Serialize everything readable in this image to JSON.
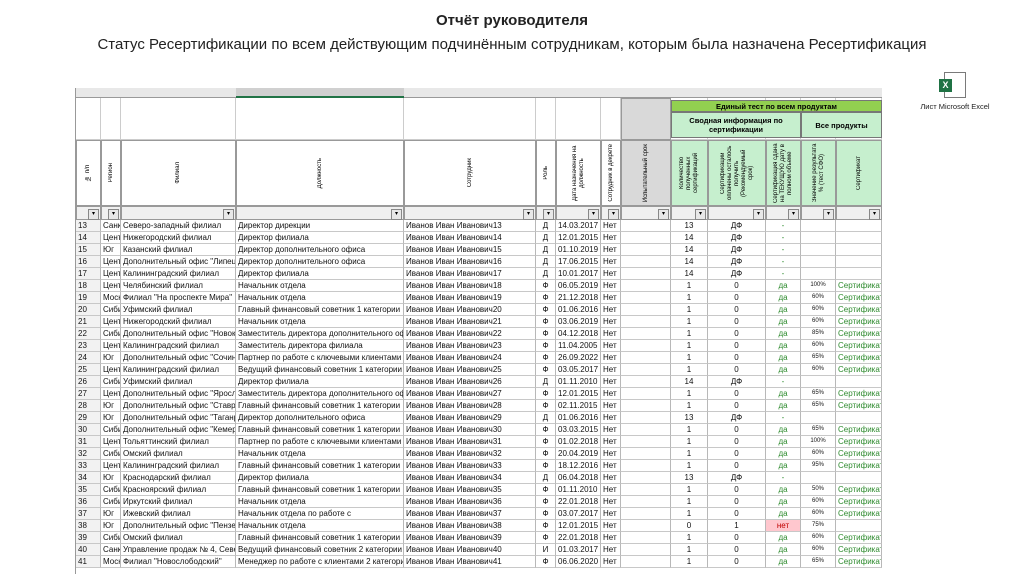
{
  "header": {
    "title": "Отчёт руководителя",
    "subtitle": "Статус Ресертификации по всем действующим подчинённым сотрудникам, которым была назначена Ресертификация"
  },
  "attachment": {
    "label": "Лист Microsoft Excel"
  },
  "table": {
    "groups": {
      "top": "Единый тест по всем продуктам",
      "summary": "Сводная информация по сертификации",
      "all": "Все продукты"
    },
    "columns": [
      "№ п/п",
      "Регион",
      "Филиал",
      "Должность",
      "Сотрудник",
      "Роль",
      "Дата назначения на должность",
      "Сотрудник в декрете",
      "Испытательный срок",
      "Количество полученных сертификаций",
      "Сертификации оплачены осталось получить (Рекомендуемый срок)",
      "Сертификация сдана на ТЕКУЩУЮ дату в полном объеме",
      "Значение результата % (тест СФО)",
      "Сертификат"
    ],
    "rows": [
      {
        "n": 13,
        "region": "Санк",
        "branch": "Северо-западный филиал",
        "position": "Директор дирекции",
        "employee": "Иванов Иван Иванович13",
        "role": "Д",
        "date": "14.03.2017",
        "leave": "Нет",
        "count": 13,
        "paid": "ДФ",
        "passed": "-"
      },
      {
        "n": 14,
        "region": "Цент",
        "branch": "Нижегородский филиал",
        "position": "Директор филиала",
        "employee": "Иванов Иван Иванович14",
        "role": "Д",
        "date": "12.01.2015",
        "leave": "Нет",
        "count": 14,
        "paid": "ДФ",
        "passed": "-"
      },
      {
        "n": 15,
        "region": "Юг",
        "branch": "Казанский филиал",
        "position": "Директор дополнительного офиса",
        "employee": "Иванов Иван Иванович15",
        "role": "Д",
        "date": "01.10.2019",
        "leave": "Нет",
        "count": 14,
        "paid": "ДФ",
        "passed": "-"
      },
      {
        "n": 16,
        "region": "Цент",
        "branch": "Дополнительный офис \"Липецкий\"",
        "position": "Директор дополнительного офиса",
        "employee": "Иванов Иван Иванович16",
        "role": "Д",
        "date": "17.06.2015",
        "leave": "Нет",
        "count": 14,
        "paid": "ДФ",
        "passed": "-"
      },
      {
        "n": 17,
        "region": "Цент",
        "branch": "Калининградский филиал",
        "position": "Директор филиала",
        "employee": "Иванов Иван Иванович17",
        "role": "Д",
        "date": "10.01.2017",
        "leave": "Нет",
        "count": 14,
        "paid": "ДФ",
        "passed": "-"
      },
      {
        "n": 18,
        "region": "Цент",
        "branch": "Челябинский филиал",
        "position": "Начальник отдела",
        "employee": "Иванов Иван Иванович18",
        "role": "Ф",
        "date": "06.05.2019",
        "leave": "Нет",
        "count": 1,
        "paid": "0",
        "passed": "да",
        "score": "100%",
        "cert": "Сертификат"
      },
      {
        "n": 19,
        "region": "Моск",
        "branch": "Филиал \"На проспекте Мира\"",
        "position": "Начальник отдела",
        "employee": "Иванов Иван Иванович19",
        "role": "Ф",
        "date": "21.12.2018",
        "leave": "Нет",
        "count": 1,
        "paid": "0",
        "passed": "да",
        "score": "60%",
        "cert": "Сертификат"
      },
      {
        "n": 20,
        "region": "Сиби",
        "branch": "Уфимский филиал",
        "position": "Главный финансовый советник 1 категории",
        "employee": "Иванов Иван Иванович20",
        "role": "Ф",
        "date": "01.06.2016",
        "leave": "Нет",
        "count": 1,
        "paid": "0",
        "passed": "да",
        "score": "60%",
        "cert": "Сертификат"
      },
      {
        "n": 21,
        "region": "Цент",
        "branch": "Нижегородский филиал",
        "position": "Начальник отдела",
        "employee": "Иванов Иван Иванович21",
        "role": "Ф",
        "date": "03.06.2019",
        "leave": "Нет",
        "count": 1,
        "paid": "0",
        "passed": "да",
        "score": "60%",
        "cert": "Сертификат"
      },
      {
        "n": 22,
        "region": "Сиби",
        "branch": "Дополнительный офис \"Новокузнецкий\"",
        "position": "Заместитель директора дополнительного офиса",
        "employee": "Иванов Иван Иванович22",
        "role": "Ф",
        "date": "04.12.2018",
        "leave": "Нет",
        "count": 1,
        "paid": "0",
        "passed": "да",
        "score": "85%",
        "cert": "Сертификат"
      },
      {
        "n": 23,
        "region": "Цент",
        "branch": "Калининградский филиал",
        "position": "Заместитель директора филиала",
        "employee": "Иванов Иван Иванович23",
        "role": "Ф",
        "date": "11.04.2005",
        "leave": "Нет",
        "count": 1,
        "paid": "0",
        "passed": "да",
        "score": "60%",
        "cert": "Сертификат"
      },
      {
        "n": 24,
        "region": "Юг",
        "branch": "Дополнительный офис \"Сочинский\"",
        "position": "Партнер по работе с ключевыми клиентами",
        "employee": "Иванов Иван Иванович24",
        "role": "Ф",
        "date": "26.09.2022",
        "leave": "Нет",
        "count": 1,
        "paid": "0",
        "passed": "да",
        "score": "65%",
        "cert": "Сертификат"
      },
      {
        "n": 25,
        "region": "Цент",
        "branch": "Калининградский филиал",
        "position": "Ведущий финансовый советник 1 категории",
        "employee": "Иванов Иван Иванович25",
        "role": "Ф",
        "date": "03.05.2017",
        "leave": "Нет",
        "count": 1,
        "paid": "0",
        "passed": "да",
        "score": "60%",
        "cert": "Сертификат"
      },
      {
        "n": 26,
        "region": "Сиби",
        "branch": "Уфимский филиал",
        "position": "Директор филиала",
        "employee": "Иванов Иван Иванович26",
        "role": "Д",
        "date": "01.11.2010",
        "leave": "Нет",
        "count": 14,
        "paid": "ДФ",
        "passed": "-"
      },
      {
        "n": 27,
        "region": "Цент",
        "branch": "Дополнительный офис \"Ярославский\"",
        "position": "Заместитель директора дополнительного офиса",
        "employee": "Иванов Иван Иванович27",
        "role": "Ф",
        "date": "12.01.2015",
        "leave": "Нет",
        "count": 1,
        "paid": "0",
        "passed": "да",
        "score": "65%",
        "cert": "Сертификат"
      },
      {
        "n": 28,
        "region": "Юг",
        "branch": "Дополнительный офис \"Ставропольский\"",
        "position": "Главный финансовый советник 1 категории",
        "employee": "Иванов Иван Иванович28",
        "role": "Ф",
        "date": "02.11.2015",
        "leave": "Нет",
        "count": 1,
        "paid": "0",
        "passed": "да",
        "score": "65%",
        "cert": "Сертификат"
      },
      {
        "n": 29,
        "region": "Юг",
        "branch": "Дополнительный офис \"Таганрогский\"",
        "position": "Директор дополнительного офиса",
        "employee": "Иванов Иван Иванович29",
        "role": "Д",
        "date": "01.06.2016",
        "leave": "Нет",
        "count": 13,
        "paid": "ДФ",
        "passed": "-"
      },
      {
        "n": 30,
        "region": "Сиби",
        "branch": "Дополнительный офис \"Кемеровский\"",
        "position": "Главный финансовый советник 1 категории",
        "employee": "Иванов Иван Иванович30",
        "role": "Ф",
        "date": "03.03.2015",
        "leave": "Нет",
        "count": 1,
        "paid": "0",
        "passed": "да",
        "score": "65%",
        "cert": "Сертификат"
      },
      {
        "n": 31,
        "region": "Цент",
        "branch": "Тольяттинский филиал",
        "position": "Партнер по работе с ключевыми клиентами",
        "employee": "Иванов Иван Иванович31",
        "role": "Ф",
        "date": "01.02.2018",
        "leave": "Нет",
        "count": 1,
        "paid": "0",
        "passed": "да",
        "score": "100%",
        "cert": "Сертификат"
      },
      {
        "n": 32,
        "region": "Сиби",
        "branch": "Омский филиал",
        "position": "Начальник отдела",
        "employee": "Иванов Иван Иванович32",
        "role": "Ф",
        "date": "20.04.2019",
        "leave": "Нет",
        "count": 1,
        "paid": "0",
        "passed": "да",
        "score": "60%",
        "cert": "Сертификат"
      },
      {
        "n": 33,
        "region": "Цент",
        "branch": "Калининградский филиал",
        "position": "Главный финансовый советник 1 категории",
        "employee": "Иванов Иван Иванович33",
        "role": "Ф",
        "date": "18.12.2016",
        "leave": "Нет",
        "count": 1,
        "paid": "0",
        "passed": "да",
        "score": "95%",
        "cert": "Сертификат"
      },
      {
        "n": 34,
        "region": "Юг",
        "branch": "Краснодарский филиал",
        "position": "Директор филиала",
        "employee": "Иванов Иван Иванович34",
        "role": "Д",
        "date": "06.04.2018",
        "leave": "Нет",
        "count": 13,
        "paid": "ДФ",
        "passed": "-"
      },
      {
        "n": 35,
        "region": "Сиби",
        "branch": "Красноярский филиал",
        "position": "Главный финансовый советник 1 категории",
        "employee": "Иванов Иван Иванович35",
        "role": "Ф",
        "date": "01.11.2010",
        "leave": "Нет",
        "count": 1,
        "paid": "0",
        "passed": "да",
        "score": "50%",
        "cert": "Сертификат"
      },
      {
        "n": 36,
        "region": "Сиби",
        "branch": "Иркутский филиал",
        "position": "Начальник отдела",
        "employee": "Иванов Иван Иванович36",
        "role": "Ф",
        "date": "22.01.2018",
        "leave": "Нет",
        "count": 1,
        "paid": "0",
        "passed": "да",
        "score": "60%",
        "cert": "Сертификат"
      },
      {
        "n": 37,
        "region": "Юг",
        "branch": "Ижевский филиал",
        "position": "Начальник отдела по работе с",
        "employee": "Иванов Иван Иванович37",
        "role": "Ф",
        "date": "03.07.2017",
        "leave": "Нет",
        "count": 1,
        "paid": "0",
        "passed": "да",
        "score": "60%",
        "cert": "Сертификат"
      },
      {
        "n": 38,
        "region": "Юг",
        "branch": "Дополнительный офис \"Пензенский\"",
        "position": "Начальник отдела",
        "employee": "Иванов Иван Иванович38",
        "role": "Ф",
        "date": "12.01.2015",
        "leave": "Нет",
        "count": 0,
        "paid": "1",
        "passed": "нет",
        "score": "75%"
      },
      {
        "n": 39,
        "region": "Сиби",
        "branch": "Омский филиал",
        "position": "Главный финансовый советник 1 категории",
        "employee": "Иванов Иван Иванович39",
        "role": "Ф",
        "date": "22.01.2018",
        "leave": "Нет",
        "count": 1,
        "paid": "0",
        "passed": "да",
        "score": "60%",
        "cert": "Сертификат"
      },
      {
        "n": 40,
        "region": "Санк",
        "branch": "Управление продаж № 4, Северо-Запад",
        "position": "Ведущий финансовый советник 2 категории",
        "employee": "Иванов Иван Иванович40",
        "role": "И",
        "date": "01.03.2017",
        "leave": "Нет",
        "count": 1,
        "paid": "0",
        "passed": "да",
        "score": "60%",
        "cert": "Сертификат"
      },
      {
        "n": 41,
        "region": "Моск",
        "branch": "Филиал \"Новослободский\"",
        "position": "Менеджер по работе с клиентами 2 категории",
        "employee": "Иванов Иван Иванович41",
        "role": "Ф",
        "date": "06.06.2020",
        "leave": "Нет",
        "count": 1,
        "paid": "0",
        "passed": "да",
        "score": "65%",
        "cert": "Сертификат"
      }
    ]
  }
}
